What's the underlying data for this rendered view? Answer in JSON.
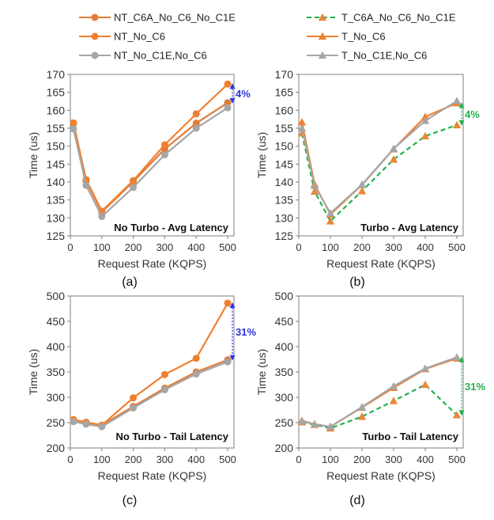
{
  "legends": [
    {
      "entries": [
        {
          "label": "NT_C6A_No_C6_No_C1E",
          "color": "#E07B39",
          "line": "solid",
          "marker": "circle"
        },
        {
          "label": "NT_No_C6",
          "color": "#F08030",
          "line": "solid",
          "marker": "circle"
        },
        {
          "label": "NT_No_C1E,No_C6",
          "color": "#A6A6A6",
          "line": "solid",
          "marker": "circle"
        }
      ]
    },
    {
      "entries": [
        {
          "label": "T_C6A_No_C6_No_C1E",
          "color": "#22B24C",
          "line": "dashed",
          "marker": "triangle",
          "marker_fill": "#E8883A"
        },
        {
          "label": "T_No_C6",
          "color": "#F08030",
          "line": "solid",
          "marker": "triangle"
        },
        {
          "label": "T_No_C1E,No_C6",
          "color": "#A6A6A6",
          "line": "solid",
          "marker": "triangle"
        }
      ]
    }
  ],
  "chart_data": [
    {
      "id": "a",
      "type": "line",
      "subfig_label": "(a)",
      "annotation": "No Turbo - Avg Latency",
      "xlabel": "Request Rate (KQPS)",
      "ylabel": "Time (us)",
      "x": [
        10,
        50,
        100,
        200,
        300,
        400,
        500
      ],
      "xticks": [
        0,
        100,
        200,
        300,
        400,
        500
      ],
      "ylim": [
        125,
        170
      ],
      "yticks": [
        125,
        130,
        135,
        140,
        145,
        150,
        155,
        160,
        165,
        170
      ],
      "grid": false,
      "series": [
        {
          "name": "NT_C6A_No_C6_No_C1E",
          "values": [
            156.3,
            140.3,
            131.6,
            140.1,
            149.2,
            156.4,
            162.1
          ],
          "color": "#E07B39",
          "line": "solid",
          "marker": "circle",
          "marker_fill": "#E07B39"
        },
        {
          "name": "NT_No_C6",
          "values": [
            156.5,
            140.7,
            131.9,
            140.4,
            150.4,
            159.0,
            167.3
          ],
          "color": "#F08030",
          "line": "solid",
          "marker": "circle",
          "marker_fill": "#F08030"
        },
        {
          "name": "NT_No_C1E,No_C6",
          "values": [
            154.8,
            139.1,
            130.4,
            138.5,
            147.6,
            155.0,
            160.7
          ],
          "color": "#A6A6A6",
          "line": "solid",
          "marker": "circle",
          "marker_fill": "#A6A6A6"
        }
      ],
      "gap": {
        "x": 500,
        "y_from": 167.3,
        "y_to": 162.1,
        "label": "4%",
        "color": "#2B35E0"
      }
    },
    {
      "id": "b",
      "type": "line",
      "subfig_label": "(b)",
      "annotation": "Turbo - Avg Latency",
      "xlabel": "Request Rate (KQPS)",
      "ylabel": "Time (us)",
      "x": [
        10,
        50,
        100,
        200,
        300,
        400,
        500
      ],
      "xticks": [
        0,
        100,
        200,
        300,
        400,
        500
      ],
      "ylim": [
        125,
        170
      ],
      "yticks": [
        125,
        130,
        135,
        140,
        145,
        150,
        155,
        160,
        165,
        170
      ],
      "grid": false,
      "series": [
        {
          "name": "T_C6A_No_C6_No_C1E",
          "values": [
            153.6,
            137.4,
            129.1,
            137.5,
            146.3,
            152.8,
            155.9
          ],
          "color": "#22B24C",
          "line": "dashed",
          "marker": "triangle",
          "marker_fill": "#E8883A"
        },
        {
          "name": "T_No_C6",
          "values": [
            156.7,
            139.4,
            131.0,
            139.2,
            149.2,
            158.2,
            162.0
          ],
          "color": "#F08030",
          "line": "solid",
          "marker": "triangle",
          "marker_fill": "#F08030"
        },
        {
          "name": "T_No_C1E,No_C6",
          "values": [
            155.0,
            139.0,
            131.3,
            139.3,
            149.3,
            157.1,
            162.6
          ],
          "color": "#A6A6A6",
          "line": "solid",
          "marker": "triangle",
          "marker_fill": "#A6A6A6"
        }
      ],
      "gap": {
        "x": 500,
        "y_from": 162.0,
        "y_to": 155.9,
        "label": "4%",
        "color": "#22B24C"
      }
    },
    {
      "id": "c",
      "type": "line",
      "subfig_label": "(c)",
      "annotation": "No Turbo - Tail Latency",
      "xlabel": "Request Rate (KQPS)",
      "ylabel": "Time (us)",
      "x": [
        10,
        50,
        100,
        200,
        300,
        400,
        500
      ],
      "xticks": [
        0,
        100,
        200,
        300,
        400,
        500
      ],
      "ylim": [
        200,
        500
      ],
      "yticks": [
        200,
        250,
        300,
        350,
        400,
        450,
        500
      ],
      "grid": false,
      "series": [
        {
          "name": "NT_C6A_No_C6_No_C1E",
          "values": [
            256,
            250,
            245,
            282,
            318,
            350,
            374
          ],
          "color": "#E07B39",
          "line": "solid",
          "marker": "circle",
          "marker_fill": "#E07B39"
        },
        {
          "name": "NT_No_C6",
          "values": [
            256,
            251,
            245,
            299,
            345,
            377,
            486
          ],
          "color": "#F08030",
          "line": "solid",
          "marker": "circle",
          "marker_fill": "#F08030"
        },
        {
          "name": "NT_No_C1E,No_C6",
          "values": [
            252,
            247,
            242,
            279,
            315,
            346,
            370
          ],
          "color": "#A6A6A6",
          "line": "solid",
          "marker": "circle",
          "marker_fill": "#A6A6A6"
        }
      ],
      "gap": {
        "x": 500,
        "y_from": 486,
        "y_to": 374,
        "label": "31%",
        "color": "#2B35E0"
      }
    },
    {
      "id": "d",
      "type": "line",
      "subfig_label": "(d)",
      "annotation": "Turbo - Tail Latency",
      "xlabel": "Request Rate (KQPS)",
      "ylabel": "Time (us)",
      "x": [
        10,
        50,
        100,
        200,
        300,
        400,
        500
      ],
      "xticks": [
        0,
        100,
        200,
        300,
        400,
        500
      ],
      "ylim": [
        200,
        500
      ],
      "yticks": [
        200,
        250,
        300,
        350,
        400,
        450,
        500
      ],
      "grid": false,
      "series": [
        {
          "name": "T_C6A_No_C6_No_C1E",
          "values": [
            251,
            246,
            239,
            262,
            293,
            325,
            265
          ],
          "color": "#22B24C",
          "line": "dashed",
          "marker": "triangle",
          "marker_fill": "#E8883A"
        },
        {
          "name": "T_No_C6",
          "values": [
            254,
            247,
            242,
            280,
            319,
            356,
            377
          ],
          "color": "#F08030",
          "line": "solid",
          "marker": "triangle",
          "marker_fill": "#F08030"
        },
        {
          "name": "T_No_C1E,No_C6",
          "values": [
            253,
            247,
            242,
            281,
            322,
            357,
            379
          ],
          "color": "#A6A6A6",
          "line": "solid",
          "marker": "triangle",
          "marker_fill": "#A6A6A6"
        }
      ],
      "gap": {
        "x": 500,
        "y_from": 379,
        "y_to": 265,
        "label": "31%",
        "color": "#22B24C"
      }
    }
  ]
}
